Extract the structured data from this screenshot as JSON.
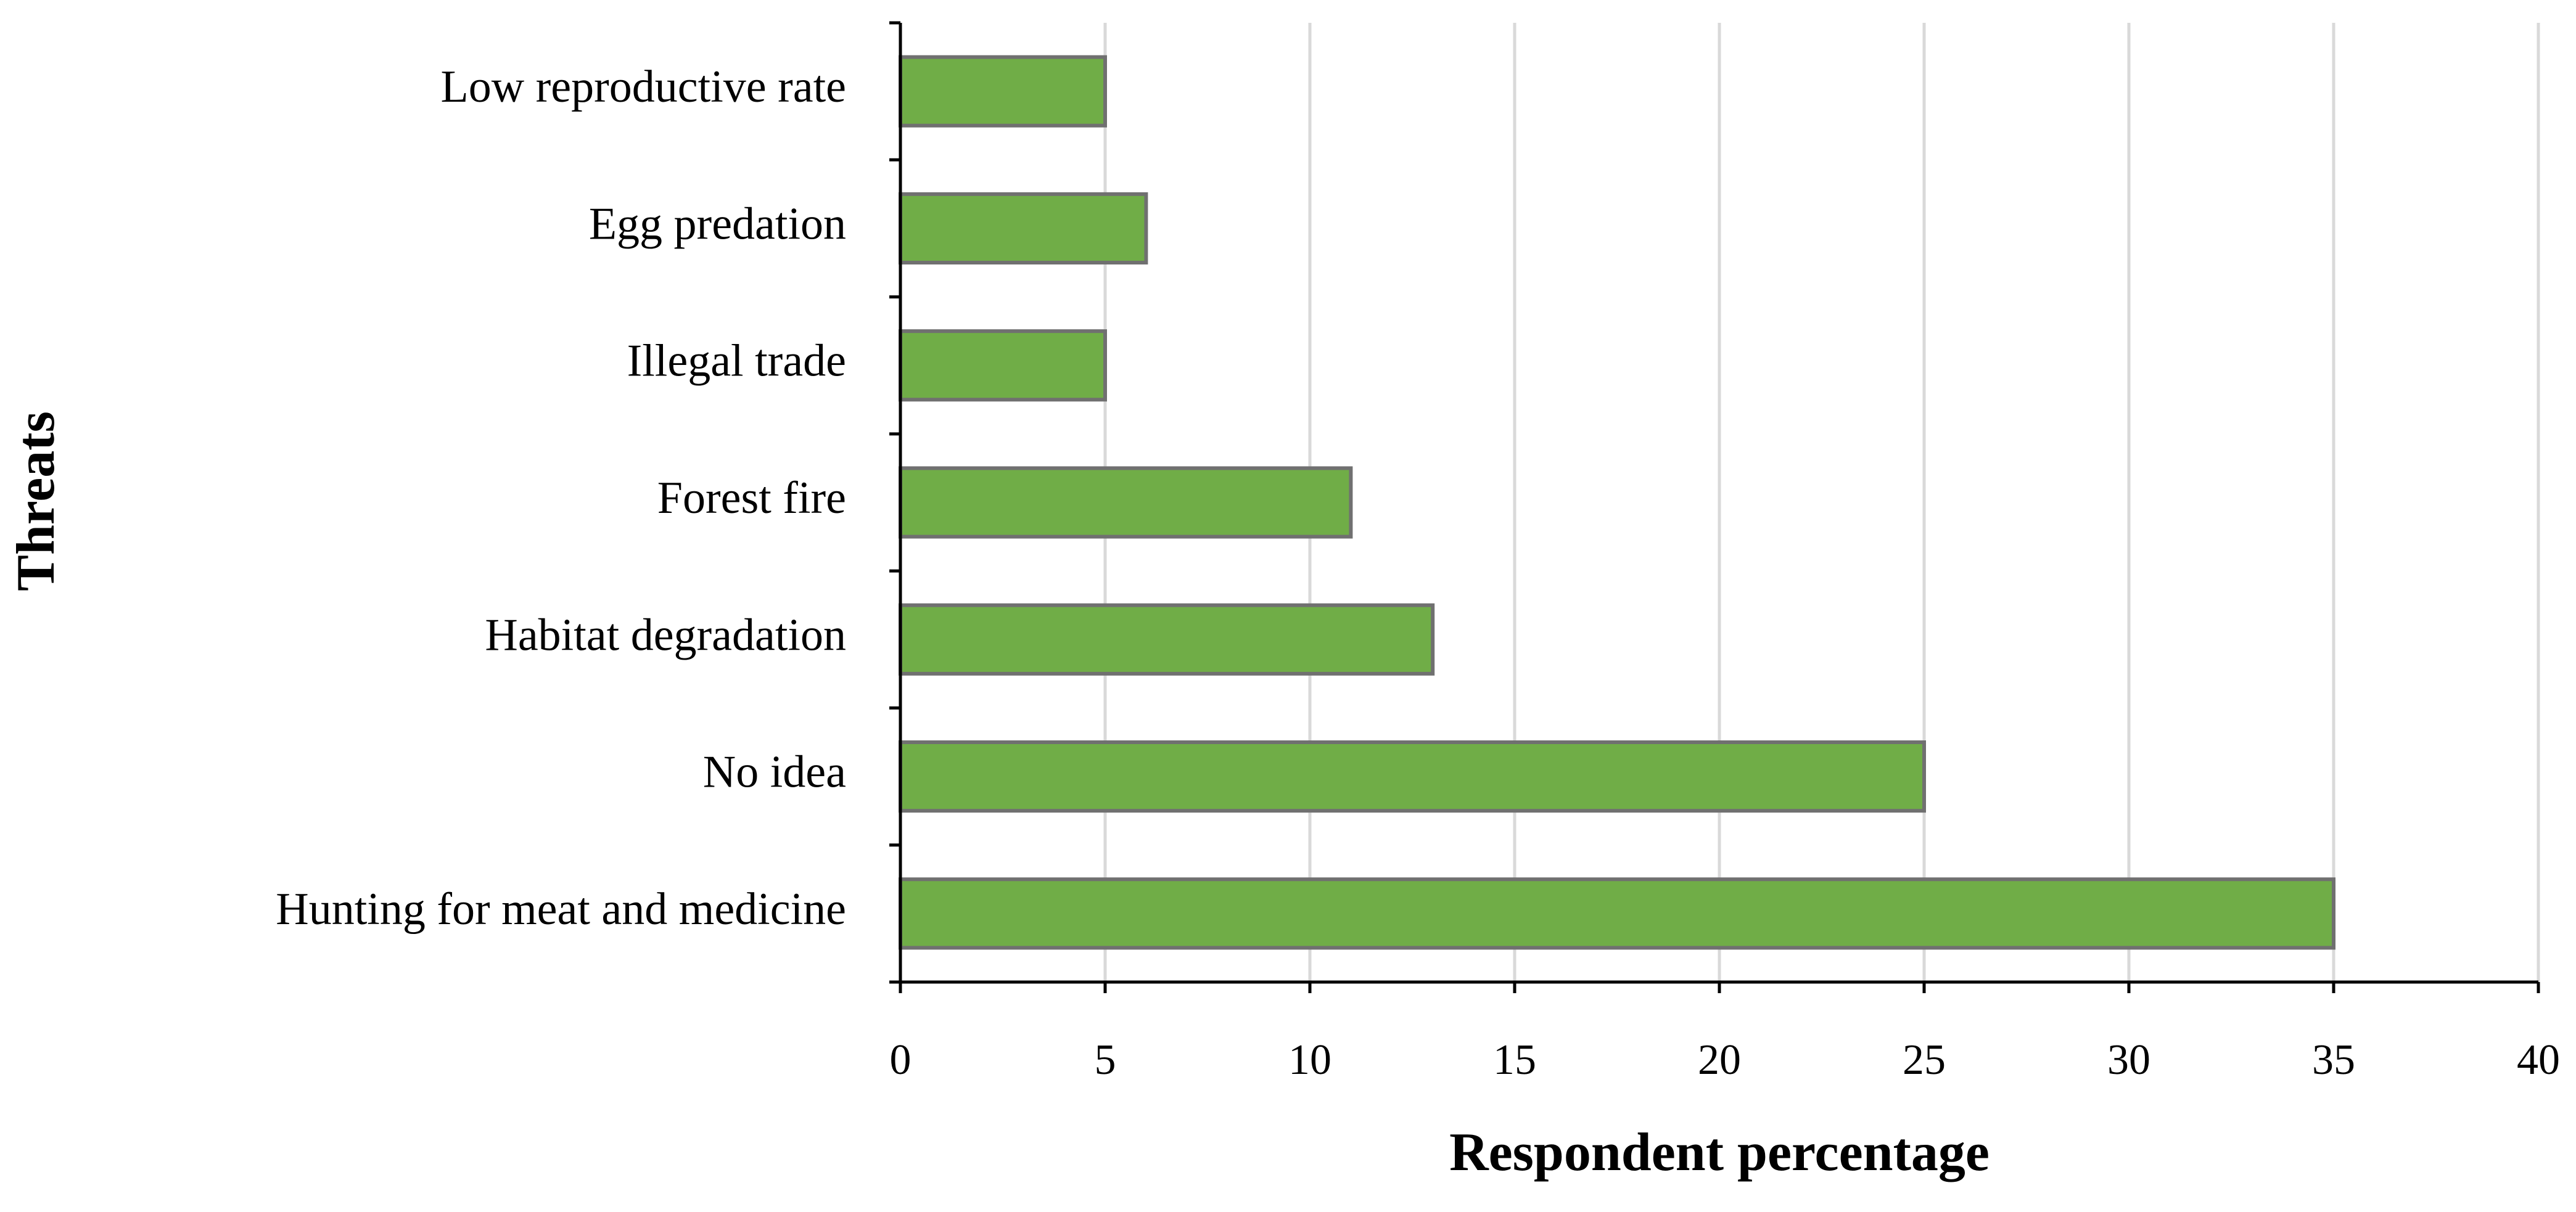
{
  "chart_data": {
    "type": "hbar",
    "x_label": "Respondent percentage",
    "y_label": "Threats",
    "categories": [
      "Low reproductive rate",
      "Egg predation",
      "Illegal trade",
      "Forest fire",
      "Habitat degradation",
      "No idea",
      "Hunting for meat and medicine"
    ],
    "values": [
      5,
      6,
      5,
      11,
      13,
      25,
      35
    ],
    "color": "#70ad47",
    "xlim": [
      0,
      40
    ],
    "xticks": [
      0,
      5,
      10,
      15,
      20,
      25,
      30,
      35,
      40
    ],
    "grid": true
  }
}
